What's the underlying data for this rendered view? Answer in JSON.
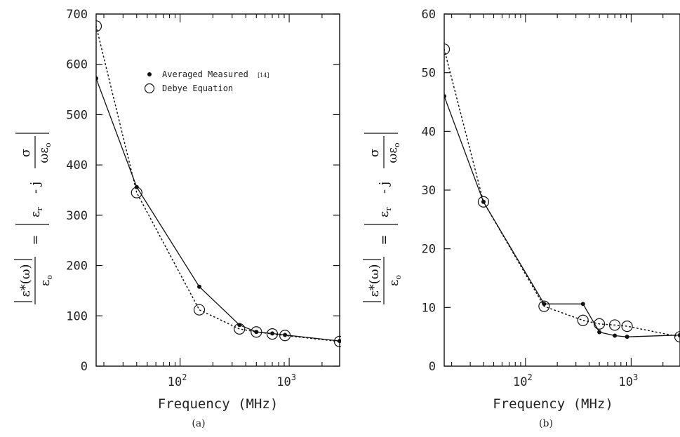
{
  "chart_data": [
    {
      "type": "line",
      "panel_label": "(a)",
      "xlabel": "Frequency (MHz)",
      "x_scale": "log",
      "xlim": [
        17,
        2900
      ],
      "ylim": [
        0,
        700
      ],
      "yticks": [
        0,
        100,
        200,
        300,
        400,
        500,
        600,
        700
      ],
      "xticks": [
        {
          "value": 100,
          "base": "10",
          "exp": "2"
        },
        {
          "value": 1000,
          "base": "10",
          "exp": "3"
        }
      ],
      "ylabel": {
        "lhs_num": "ε*(ω)",
        "lhs_den": "ε",
        "lhs_den_sub": "o",
        "equals": "=",
        "rhs_term": "ε",
        "rhs_term_sub": "r",
        "rhs_op": "- j",
        "rhs_frac_num": "σ",
        "rhs_frac_den": "ωε",
        "rhs_frac_den_sub": "o"
      },
      "legend": {
        "position": "top-center",
        "entries": [
          {
            "marker": "filled-dot",
            "label": "Averaged Measured",
            "ref": "[14]"
          },
          {
            "marker": "open-circle",
            "label": "Debye Equation"
          }
        ]
      },
      "series": [
        {
          "name": "Averaged Measured",
          "style": "solid",
          "marker": "filled-dot",
          "x": [
            17,
            40,
            150,
            350,
            500,
            700,
            915,
            2900
          ],
          "y": [
            572,
            356,
            158,
            82,
            68,
            65,
            62,
            50
          ]
        },
        {
          "name": "Debye Equation",
          "style": "dotted",
          "marker": "open-circle",
          "x": [
            17,
            40,
            150,
            350,
            500,
            700,
            915,
            2900
          ],
          "y": [
            676,
            345,
            112,
            74,
            68,
            64,
            61,
            49
          ]
        }
      ]
    },
    {
      "type": "line",
      "panel_label": "(b)",
      "xlabel": "Frequency (MHz)",
      "x_scale": "log",
      "xlim": [
        17,
        2900
      ],
      "ylim": [
        0,
        60
      ],
      "yticks": [
        0,
        10,
        20,
        30,
        40,
        50,
        60
      ],
      "xticks": [
        {
          "value": 100,
          "base": "10",
          "exp": "2"
        },
        {
          "value": 1000,
          "base": "10",
          "exp": "3"
        }
      ],
      "ylabel": {
        "lhs_num": "ε*(ω)",
        "lhs_den": "ε",
        "lhs_den_sub": "o",
        "equals": "=",
        "rhs_term": "ε",
        "rhs_term_sub": "r",
        "rhs_op": "- j",
        "rhs_frac_num": "σ",
        "rhs_frac_den": "ωε",
        "rhs_frac_den_sub": "o"
      },
      "series": [
        {
          "name": "Averaged Measured",
          "style": "solid",
          "marker": "filled-dot",
          "x": [
            17,
            40,
            150,
            350,
            500,
            700,
            915,
            2900
          ],
          "y": [
            46,
            28,
            10.6,
            10.6,
            5.8,
            5.2,
            5.0,
            5.3
          ]
        },
        {
          "name": "Debye Equation",
          "style": "dotted",
          "marker": "open-circle",
          "x": [
            17,
            40,
            150,
            350,
            500,
            700,
            915,
            2900
          ],
          "y": [
            54,
            28,
            10.2,
            7.8,
            7.2,
            7.0,
            6.8,
            5.0
          ]
        }
      ]
    }
  ]
}
